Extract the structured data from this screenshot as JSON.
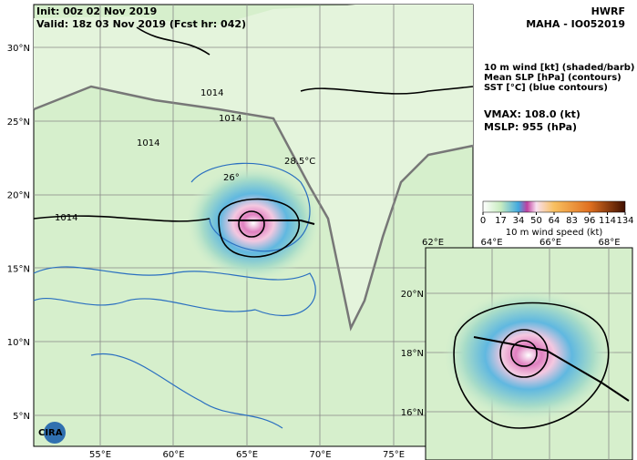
{
  "header": {
    "init": "Init:  00z 02 Nov 2019",
    "valid": "Valid: 18z 03 Nov 2019 (Fcst hr: 042)",
    "model": "HWRF",
    "storm": "MAHA - IO052019"
  },
  "legend": {
    "lines": [
      "10 m wind [kt] (shaded/barb)",
      "Mean SLP [hPa] (contours)",
      "SST [°C] (blue contours)"
    ],
    "vmax": "VMAX: 108.0 (kt)",
    "mslp": "MSLP:  955 (hPa)"
  },
  "colorbar": {
    "ticks": [
      0,
      17,
      34,
      50,
      64,
      83,
      96,
      114,
      134
    ],
    "label": "10 m wind speed (kt)"
  },
  "main_map": {
    "lat_labels": [
      "30°N",
      "25°N",
      "20°N",
      "15°N",
      "10°N",
      "5°N"
    ],
    "lon_labels": [
      "55°E",
      "60°E",
      "65°E",
      "70°E",
      "75°E"
    ],
    "contour_labels": [
      "1014",
      "1014",
      "1014",
      "1014",
      "26°",
      "28.5°C"
    ]
  },
  "inset_map": {
    "lon_labels": [
      "62°E",
      "64°E",
      "66°E",
      "68°E"
    ],
    "lat_labels": [
      "20°N",
      "18°N",
      "16°N"
    ]
  },
  "logo": "CIRA"
}
